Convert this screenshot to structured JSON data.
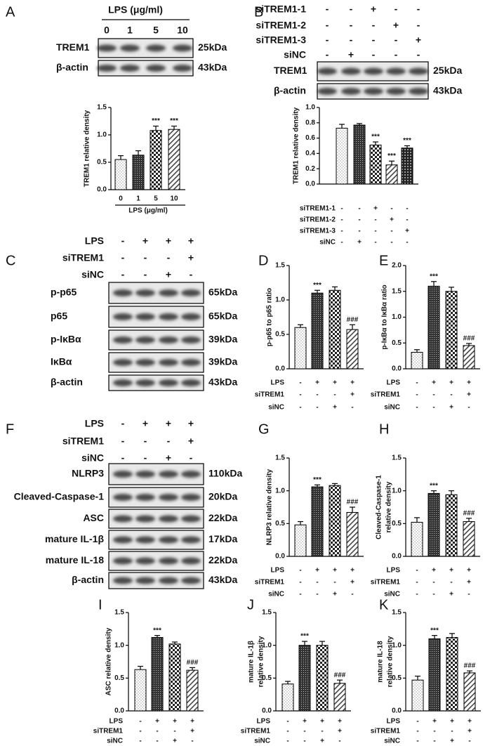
{
  "blots": [
    {
      "label": "A",
      "header": "LPS (μg/ml)",
      "lanes": [
        "0",
        "1",
        "5",
        "10"
      ],
      "rows": [
        {
          "name": "TREM1",
          "size": "25kDa"
        },
        {
          "name": "β-actin",
          "size": "43kDa"
        }
      ]
    },
    {
      "label": "B",
      "conditions": [
        {
          "name": "siTREM1-1",
          "signs": [
            "-",
            "-",
            "+",
            "-",
            "-"
          ]
        },
        {
          "name": "siTREM1-2",
          "signs": [
            "-",
            "-",
            "-",
            "+",
            "-"
          ]
        },
        {
          "name": "siTREM1-3",
          "signs": [
            "-",
            "-",
            "-",
            "-",
            "+"
          ]
        },
        {
          "name": "siNC",
          "signs": [
            "-",
            "+",
            "-",
            "-",
            "-"
          ]
        }
      ],
      "rows": [
        {
          "name": "TREM1",
          "size": "25kDa"
        },
        {
          "name": "β-actin",
          "size": "43kDa"
        }
      ]
    },
    {
      "label": "C",
      "conditions": [
        {
          "name": "LPS",
          "signs": [
            "-",
            "+",
            "+",
            "+"
          ]
        },
        {
          "name": "siTREM1",
          "signs": [
            "-",
            "-",
            "-",
            "+"
          ]
        },
        {
          "name": "siNC",
          "signs": [
            "-",
            "-",
            "+",
            "-"
          ]
        }
      ],
      "rows": [
        {
          "name": "p-p65",
          "size": "65kDa"
        },
        {
          "name": "p65",
          "size": "65kDa"
        },
        {
          "name": "p-IκBα",
          "size": "39kDa"
        },
        {
          "name": "IκBα",
          "size": "39kDa"
        },
        {
          "name": "β-actin",
          "size": "43kDa"
        }
      ]
    },
    {
      "label": "F",
      "conditions": [
        {
          "name": "LPS",
          "signs": [
            "-",
            "+",
            "+",
            "+"
          ]
        },
        {
          "name": "siTREM1",
          "signs": [
            "-",
            "-",
            "-",
            "+"
          ]
        },
        {
          "name": "siNC",
          "signs": [
            "-",
            "-",
            "+",
            "-"
          ]
        }
      ],
      "rows": [
        {
          "name": "NLRP3",
          "size": "110kDa"
        },
        {
          "name": "Cleaved-Caspase-1",
          "size": "20kDa"
        },
        {
          "name": "ASC",
          "size": "22kDa"
        },
        {
          "name": "mature IL-1β",
          "size": "17kDa"
        },
        {
          "name": "mature IL-18",
          "size": "22kDa"
        },
        {
          "name": "β-actin",
          "size": "43kDa"
        }
      ]
    }
  ],
  "chart_data": [
    {
      "type": "bar",
      "ylabel": [
        "TREM1 relative density"
      ],
      "categories": [
        "0",
        "1",
        "5",
        "10"
      ],
      "xlabel": "LPS (μg/ml)",
      "values": [
        0.55,
        0.63,
        1.08,
        1.1
      ],
      "errors": [
        0.07,
        0.08,
        0.08,
        0.06
      ],
      "annotations": [
        null,
        null,
        "***",
        "***"
      ],
      "ylim": [
        0,
        1.5
      ],
      "yticks": [
        {
          "value": 0,
          "label": "0.0"
        },
        {
          "value": 0.5,
          "label": "0.5"
        },
        {
          "value": 1,
          "label": "1.0"
        },
        {
          "value": 1.5,
          "label": "1.5"
        }
      ]
    },
    {
      "type": "bar",
      "ylabel": [
        "TREM1 relative density"
      ],
      "conditions": [
        {
          "name": "siTREM1-1",
          "signs": [
            "-",
            "-",
            "+",
            "-",
            "-"
          ]
        },
        {
          "name": "siTREM1-2",
          "signs": [
            "-",
            "-",
            "-",
            "+",
            "-"
          ]
        },
        {
          "name": "siTREM1-3",
          "signs": [
            "-",
            "-",
            "-",
            "-",
            "+"
          ]
        },
        {
          "name": "siNC",
          "signs": [
            "-",
            "+",
            "-",
            "-",
            "-"
          ]
        }
      ],
      "values": [
        0.73,
        0.77,
        0.51,
        0.25,
        0.47
      ],
      "errors": [
        0.05,
        0.02,
        0.04,
        0.05,
        0.03
      ],
      "annotations": [
        null,
        null,
        "***",
        "***",
        "***"
      ],
      "ylim": [
        0,
        1
      ],
      "yticks": [
        {
          "value": 0,
          "label": "0.0"
        },
        {
          "value": 0.2,
          "label": "0.2"
        },
        {
          "value": 0.4,
          "label": "0.4"
        },
        {
          "value": 0.6,
          "label": "0.6"
        },
        {
          "value": 0.8,
          "label": "0.8"
        },
        {
          "value": 1,
          "label": "1.0"
        }
      ]
    },
    {
      "type": "bar",
      "label": "D",
      "ylabel": [
        "p-p65 to p65 ratio"
      ],
      "conditions": [
        {
          "name": "LPS",
          "signs": [
            "-",
            "+",
            "+",
            "+"
          ]
        },
        {
          "name": "siTREM1",
          "signs": [
            "-",
            "-",
            "-",
            "+"
          ]
        },
        {
          "name": "siNC",
          "signs": [
            "-",
            "-",
            "+",
            "-"
          ]
        }
      ],
      "values": [
        0.6,
        1.1,
        1.14,
        0.57
      ],
      "errors": [
        0.04,
        0.04,
        0.05,
        0.07
      ],
      "annotations": [
        null,
        "***",
        null,
        "###"
      ],
      "ylim": [
        0,
        1.5
      ],
      "yticks": [
        {
          "value": 0,
          "label": "0.0"
        },
        {
          "value": 0.5,
          "label": "0.5"
        },
        {
          "value": 1,
          "label": "1.0"
        },
        {
          "value": 1.5,
          "label": "1.5"
        }
      ]
    },
    {
      "type": "bar",
      "label": "E",
      "ylabel": [
        "p-IκBα to IκBα ratio"
      ],
      "conditions": [
        {
          "name": "LPS",
          "signs": [
            "-",
            "+",
            "+",
            "+"
          ]
        },
        {
          "name": "siTREM1",
          "signs": [
            "-",
            "-",
            "-",
            "+"
          ]
        },
        {
          "name": "siNC",
          "signs": [
            "-",
            "-",
            "+",
            "-"
          ]
        }
      ],
      "values": [
        0.32,
        1.6,
        1.5,
        0.45
      ],
      "errors": [
        0.05,
        0.09,
        0.08,
        0.04
      ],
      "annotations": [
        null,
        "***",
        null,
        "###"
      ],
      "ylim": [
        0,
        2
      ],
      "yticks": [
        {
          "value": 0,
          "label": "0.0"
        },
        {
          "value": 0.5,
          "label": "0.5"
        },
        {
          "value": 1,
          "label": "1.0"
        },
        {
          "value": 1.5,
          "label": "1.5"
        },
        {
          "value": 2,
          "label": "2.0"
        }
      ]
    },
    {
      "type": "bar",
      "label": "G",
      "ylabel": [
        "NLRP3 relative density"
      ],
      "conditions": [
        {
          "name": "LPS",
          "signs": [
            "-",
            "+",
            "+",
            "+"
          ]
        },
        {
          "name": "siTREM1",
          "signs": [
            "-",
            "-",
            "-",
            "+"
          ]
        },
        {
          "name": "siNC",
          "signs": [
            "-",
            "-",
            "+",
            "-"
          ]
        }
      ],
      "values": [
        0.48,
        1.06,
        1.08,
        0.67
      ],
      "errors": [
        0.05,
        0.03,
        0.03,
        0.08
      ],
      "annotations": [
        null,
        "***",
        null,
        "###"
      ],
      "ylim": [
        0,
        1.5
      ],
      "yticks": [
        {
          "value": 0,
          "label": "0.0"
        },
        {
          "value": 0.5,
          "label": "0.5"
        },
        {
          "value": 1,
          "label": "1.0"
        },
        {
          "value": 1.5,
          "label": "1.5"
        }
      ]
    },
    {
      "type": "bar",
      "label": "H",
      "ylabel": [
        "Cleaved-Caspase-1",
        "relative density"
      ],
      "conditions": [
        {
          "name": "LPS",
          "signs": [
            "-",
            "+",
            "+",
            "+"
          ]
        },
        {
          "name": "siTREM1",
          "signs": [
            "-",
            "-",
            "-",
            "+"
          ]
        },
        {
          "name": "siNC",
          "signs": [
            "-",
            "-",
            "+",
            "-"
          ]
        }
      ],
      "values": [
        0.52,
        0.96,
        0.94,
        0.53
      ],
      "errors": [
        0.07,
        0.04,
        0.06,
        0.05
      ],
      "annotations": [
        null,
        "***",
        null,
        "###"
      ],
      "ylim": [
        0,
        1.5
      ],
      "yticks": [
        {
          "value": 0,
          "label": "0.0"
        },
        {
          "value": 0.5,
          "label": "0.5"
        },
        {
          "value": 1,
          "label": "1.0"
        },
        {
          "value": 1.5,
          "label": "1.5"
        }
      ]
    },
    {
      "type": "bar",
      "label": "I",
      "ylabel": [
        "ASC relative density"
      ],
      "conditions": [
        {
          "name": "LPS",
          "signs": [
            "-",
            "+",
            "+",
            "+"
          ]
        },
        {
          "name": "siTREM1",
          "signs": [
            "-",
            "-",
            "-",
            "+"
          ]
        },
        {
          "name": "siNC",
          "signs": [
            "-",
            "-",
            "+",
            "-"
          ]
        }
      ],
      "values": [
        0.63,
        1.12,
        1.02,
        0.62
      ],
      "errors": [
        0.05,
        0.03,
        0.03,
        0.04
      ],
      "annotations": [
        null,
        "***",
        null,
        "###"
      ],
      "ylim": [
        0,
        1.5
      ],
      "yticks": [
        {
          "value": 0,
          "label": "0.0"
        },
        {
          "value": 0.5,
          "label": "0.5"
        },
        {
          "value": 1,
          "label": "1.0"
        },
        {
          "value": 1.5,
          "label": "1.5"
        }
      ]
    },
    {
      "type": "bar",
      "label": "J",
      "ylabel": [
        "mature IL-1β",
        "relative density"
      ],
      "conditions": [
        {
          "name": "LPS",
          "signs": [
            "-",
            "+",
            "+",
            "+"
          ]
        },
        {
          "name": "siTREM1",
          "signs": [
            "-",
            "-",
            "-",
            "+"
          ]
        },
        {
          "name": "siNC",
          "signs": [
            "-",
            "-",
            "+",
            "-"
          ]
        }
      ],
      "values": [
        0.41,
        1.0,
        1.0,
        0.42
      ],
      "errors": [
        0.04,
        0.06,
        0.06,
        0.05
      ],
      "annotations": [
        null,
        "***",
        null,
        "###"
      ],
      "ylim": [
        0,
        1.5
      ],
      "yticks": [
        {
          "value": 0,
          "label": "0.0"
        },
        {
          "value": 0.5,
          "label": "0.5"
        },
        {
          "value": 1,
          "label": "1.0"
        },
        {
          "value": 1.5,
          "label": "1.5"
        }
      ]
    },
    {
      "type": "bar",
      "label": "K",
      "ylabel": [
        "mature IL-18",
        "relative density"
      ],
      "conditions": [
        {
          "name": "LPS",
          "signs": [
            "-",
            "+",
            "+",
            "+"
          ]
        },
        {
          "name": "siTREM1",
          "signs": [
            "-",
            "-",
            "-",
            "+"
          ]
        },
        {
          "name": "siNC",
          "signs": [
            "-",
            "-",
            "+",
            "-"
          ]
        }
      ],
      "values": [
        0.47,
        1.1,
        1.12,
        0.58
      ],
      "errors": [
        0.06,
        0.05,
        0.06,
        0.03
      ],
      "annotations": [
        null,
        "***",
        null,
        "###"
      ],
      "ylim": [
        0,
        1.5
      ],
      "yticks": [
        {
          "value": 0,
          "label": "0.0"
        },
        {
          "value": 0.5,
          "label": "0.5"
        },
        {
          "value": 1,
          "label": "1.0"
        },
        {
          "value": 1.5,
          "label": "1.5"
        }
      ]
    }
  ]
}
